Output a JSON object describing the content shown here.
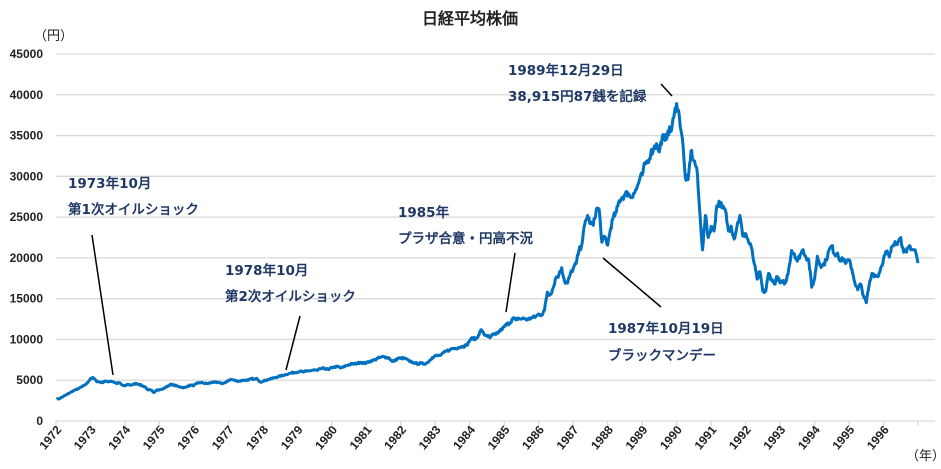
{
  "chart_data": {
    "type": "line",
    "title": "日経平均株価",
    "ylabel": "（円）",
    "xlabel": "（年）",
    "ylim": [
      0,
      45000
    ],
    "yticks": [
      0,
      5000,
      10000,
      15000,
      20000,
      25000,
      30000,
      35000,
      40000,
      45000
    ],
    "xlim": [
      1972,
      1997
    ],
    "xticks": [
      "1972",
      "1973",
      "1974",
      "1975",
      "1976",
      "1977",
      "1978",
      "1979",
      "1980",
      "1981",
      "1982",
      "1983",
      "1984",
      "1985",
      "1986",
      "1987",
      "1988",
      "1989",
      "1990",
      "1991",
      "1992",
      "1993",
      "1994",
      "1995",
      "1996"
    ],
    "grid": true,
    "line_color": "#0070C0",
    "annotation_color": "#1F3864",
    "series": [
      {
        "start": "1972-01",
        "frequency": "monthly",
        "values": [
          2713,
          2900,
          3100,
          3300,
          3500,
          3700,
          3850,
          4000,
          4200,
          4400,
          4700,
          5208,
          5300,
          4900,
          4800,
          4700,
          4900,
          4800,
          4900,
          4800,
          4600,
          4700,
          4400,
          4300,
          4500,
          4400,
          4500,
          4600,
          4500,
          4300,
          4200,
          3800,
          3800,
          3500,
          3800,
          3817,
          3900,
          4100,
          4300,
          4500,
          4400,
          4300,
          4200,
          4100,
          4100,
          4300,
          4400,
          4358,
          4600,
          4700,
          4700,
          4600,
          4600,
          4700,
          4800,
          4700,
          4700,
          4600,
          4700,
          4990,
          5100,
          5000,
          4900,
          4900,
          5000,
          5000,
          5000,
          5200,
          5100,
          5200,
          4800,
          4866,
          5000,
          5100,
          5200,
          5300,
          5400,
          5500,
          5600,
          5700,
          5800,
          5900,
          5950,
          6001,
          6100,
          6000,
          6100,
          6150,
          6200,
          6250,
          6200,
          6400,
          6450,
          6400,
          6300,
          6569,
          6600,
          6700,
          6500,
          6600,
          6800,
          6900,
          7000,
          7000,
          7100,
          7200,
          7100,
          7116,
          7300,
          7400,
          7500,
          7700,
          7800,
          7900,
          7800,
          7700,
          7300,
          7400,
          7700,
          7681,
          7700,
          7600,
          7300,
          7200,
          7100,
          7000,
          7100,
          7000,
          7100,
          7400,
          7800,
          8017,
          8000,
          8100,
          8400,
          8600,
          8700,
          8900,
          8900,
          9000,
          9100,
          9200,
          9300,
          9894,
          10200,
          10000,
          10500,
          11200,
          10600,
          10500,
          10200,
          10600,
          10600,
          10900,
          11200,
          11543,
          11900,
          12000,
          12600,
          12400,
          12600,
          12500,
          12600,
          12400,
          12600,
          12700,
          12800,
          13113,
          13000,
          13600,
          15800,
          15500,
          16300,
          17600,
          17900,
          18800,
          17100,
          16900,
          18000,
          18701,
          19300,
          20900,
          21600,
          24100,
          25200,
          24200,
          24000,
          25900,
          26000,
          21910,
          22600,
          21564,
          23600,
          25000,
          25600,
          27000,
          27400,
          27700,
          28000,
          27400,
          27900,
          28400,
          29500,
          30159,
          31500,
          31900,
          32800,
          33400,
          34000,
          33000,
          34900,
          34400,
          35600,
          35500,
          37200,
          38916,
          37200,
          34600,
          29900,
          29600,
          33100,
          31900,
          31000,
          25900,
          20983,
          25200,
          22500,
          23849,
          23300,
          26400,
          26800,
          26100,
          25800,
          23300,
          23900,
          22300,
          23900,
          25200,
          22700,
          22984,
          22000,
          21300,
          19300,
          17400,
          18300,
          15900,
          15900,
          18100,
          17400,
          16800,
          17700,
          16925,
          17000,
          17000,
          18600,
          20900,
          20500,
          19600,
          20400,
          21000,
          20100,
          19700,
          16400,
          17417,
          20200,
          19100,
          19100,
          19700,
          20900,
          21500,
          20400,
          20600,
          19600,
          19900,
          19400,
          19723,
          18600,
          17000,
          16100,
          16800,
          15400,
          14500,
          16700,
          18100,
          17900,
          17700,
          18700,
          19868,
          20800,
          20100,
          21400,
          22000,
          21900,
          22500,
          20700,
          20700,
          21500,
          21000,
          21000,
          19361
        ]
      }
    ],
    "annotations": [
      {
        "lines": [
          "1973年10月",
          "第1次オイルショック"
        ]
      },
      {
        "lines": [
          "1978年10月",
          "第2次オイルショック"
        ]
      },
      {
        "lines": [
          "1985年",
          "プラザ合意・円高不況"
        ]
      },
      {
        "lines": [
          "1989年12月29日",
          "38,915円87銭を記録"
        ]
      },
      {
        "lines": [
          "1987年10月19日",
          "ブラックマンデー"
        ]
      }
    ]
  }
}
